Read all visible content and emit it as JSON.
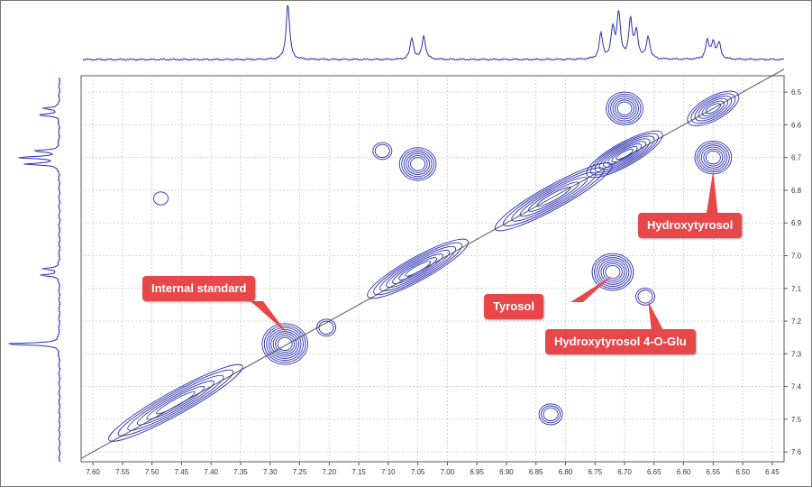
{
  "chart_data": {
    "type": "2D NMR contour (COSY)",
    "x_axis": {
      "range_ppm": [
        7.62,
        6.43
      ],
      "reversed": true,
      "ticks": [
        "7.60",
        "7.55",
        "7.50",
        "7.45",
        "7.40",
        "7.35",
        "7.30",
        "7.25",
        "7.20",
        "7.15",
        "7.10",
        "7.05",
        "7.00",
        "6.95",
        "6.90",
        "6.85",
        "6.80",
        "6.75",
        "6.70",
        "6.65",
        "6.60",
        "6.55",
        "6.50",
        "6.45"
      ]
    },
    "y_axis": {
      "range_ppm": [
        6.45,
        7.63
      ],
      "position": "right",
      "ticks": [
        "6.5",
        "6.6",
        "6.7",
        "6.8",
        "6.9",
        "7.0",
        "7.1",
        "7.2",
        "7.3",
        "7.4",
        "7.5",
        "7.6"
      ]
    },
    "grid": true,
    "line_color": "#2b2fb0",
    "top_spectrum_peaks": [
      {
        "ppm": 7.27,
        "height": 1.0
      },
      {
        "ppm": 7.06,
        "height": 0.38
      },
      {
        "ppm": 7.04,
        "height": 0.42
      },
      {
        "ppm": 6.74,
        "height": 0.45
      },
      {
        "ppm": 6.72,
        "height": 0.52
      },
      {
        "ppm": 6.71,
        "height": 0.82
      },
      {
        "ppm": 6.69,
        "height": 0.68
      },
      {
        "ppm": 6.68,
        "height": 0.48
      },
      {
        "ppm": 6.66,
        "height": 0.4
      },
      {
        "ppm": 6.56,
        "height": 0.32
      },
      {
        "ppm": 6.55,
        "height": 0.3
      },
      {
        "ppm": 6.54,
        "height": 0.28
      }
    ],
    "left_spectrum_peaks": [
      {
        "ppm": 6.55,
        "height": 0.3
      },
      {
        "ppm": 6.57,
        "height": 0.38
      },
      {
        "ppm": 6.68,
        "height": 0.45
      },
      {
        "ppm": 6.7,
        "height": 0.75
      },
      {
        "ppm": 6.72,
        "height": 0.62
      },
      {
        "ppm": 7.04,
        "height": 0.3
      },
      {
        "ppm": 7.06,
        "height": 0.34
      },
      {
        "ppm": 7.27,
        "height": 1.0
      }
    ],
    "cross_peaks": [
      {
        "x": 6.7,
        "y": 6.55,
        "levels": 6
      },
      {
        "x": 6.55,
        "y": 6.7,
        "levels": 6
      },
      {
        "x": 7.05,
        "y": 6.72,
        "levels": 6
      },
      {
        "x": 7.11,
        "y": 6.68,
        "levels": 2
      },
      {
        "x": 6.72,
        "y": 7.05,
        "levels": 7
      },
      {
        "x": 6.665,
        "y": 7.125,
        "levels": 2
      },
      {
        "x": 7.485,
        "y": 6.825,
        "levels": 1
      },
      {
        "x": 6.825,
        "y": 7.485,
        "levels": 3
      },
      {
        "x": 7.275,
        "y": 7.27,
        "levels": 8
      },
      {
        "x": 7.205,
        "y": 7.22,
        "levels": 2
      }
    ],
    "diagonal_blobs": [
      {
        "x": 7.46,
        "y": 7.45,
        "spread": 0.16,
        "levels": 6
      },
      {
        "x": 7.05,
        "y": 7.04,
        "spread": 0.12,
        "levels": 7
      },
      {
        "x": 6.82,
        "y": 6.82,
        "spread": 0.14,
        "levels": 6
      },
      {
        "x": 6.7,
        "y": 6.69,
        "spread": 0.09,
        "levels": 8
      },
      {
        "x": 6.55,
        "y": 6.55,
        "spread": 0.06,
        "levels": 6
      }
    ],
    "annotations": [
      {
        "text": "Hydroxytyrosol",
        "x": 6.55,
        "y": 6.74
      },
      {
        "text": "Internal standard",
        "x": 7.27,
        "y": 7.24
      },
      {
        "text": "Tyrosol",
        "x": 6.72,
        "y": 7.06
      },
      {
        "text": "Hydroxytyrosol 4-O-Glu",
        "x": 6.66,
        "y": 7.14
      }
    ]
  }
}
